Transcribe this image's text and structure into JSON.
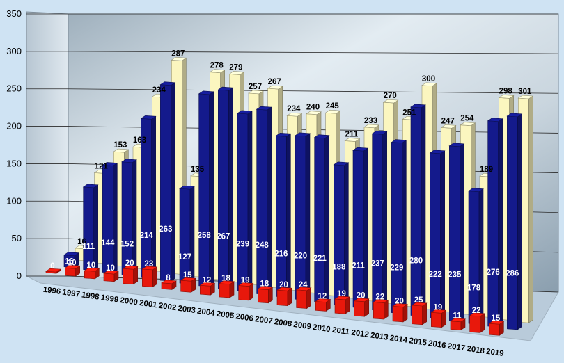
{
  "chart_data": {
    "type": "bar",
    "title": "",
    "xlabel": "",
    "ylabel": "",
    "ylim": [
      0,
      350
    ],
    "yticks": [
      0,
      50,
      100,
      150,
      200,
      250,
      300,
      350
    ],
    "grid": true,
    "legend": "none",
    "categories": [
      "1996",
      "1997",
      "1998",
      "1999",
      "2000",
      "2001",
      "2002",
      "2003",
      "2004",
      "2005",
      "2006",
      "2007",
      "2008",
      "2009",
      "2010",
      "2011",
      "2012",
      "2013",
      "2014",
      "2015",
      "2016",
      "2017",
      "2018",
      "2019"
    ],
    "series": [
      {
        "color": "#e8180c",
        "values": [
          0,
          10,
          10,
          10,
          20,
          23,
          8,
          15,
          12,
          18,
          19,
          18,
          20,
          24,
          12,
          19,
          20,
          22,
          20,
          25,
          19,
          11,
          22,
          15
        ]
      },
      {
        "color": "#141a8c",
        "values": [
          16,
          111,
          144,
          152,
          214,
          263,
          127,
          258,
          267,
          239,
          248,
          216,
          220,
          221,
          188,
          211,
          237,
          229,
          280,
          222,
          235,
          178,
          276,
          286
        ]
      },
      {
        "color": "#fbf6bf",
        "values": [
          16,
          121,
          153,
          163,
          234,
          287,
          135,
          278,
          279,
          257,
          267,
          234,
          240,
          245,
          211,
          233,
          270,
          251,
          300,
          247,
          254,
          189,
          298,
          301
        ]
      }
    ]
  }
}
